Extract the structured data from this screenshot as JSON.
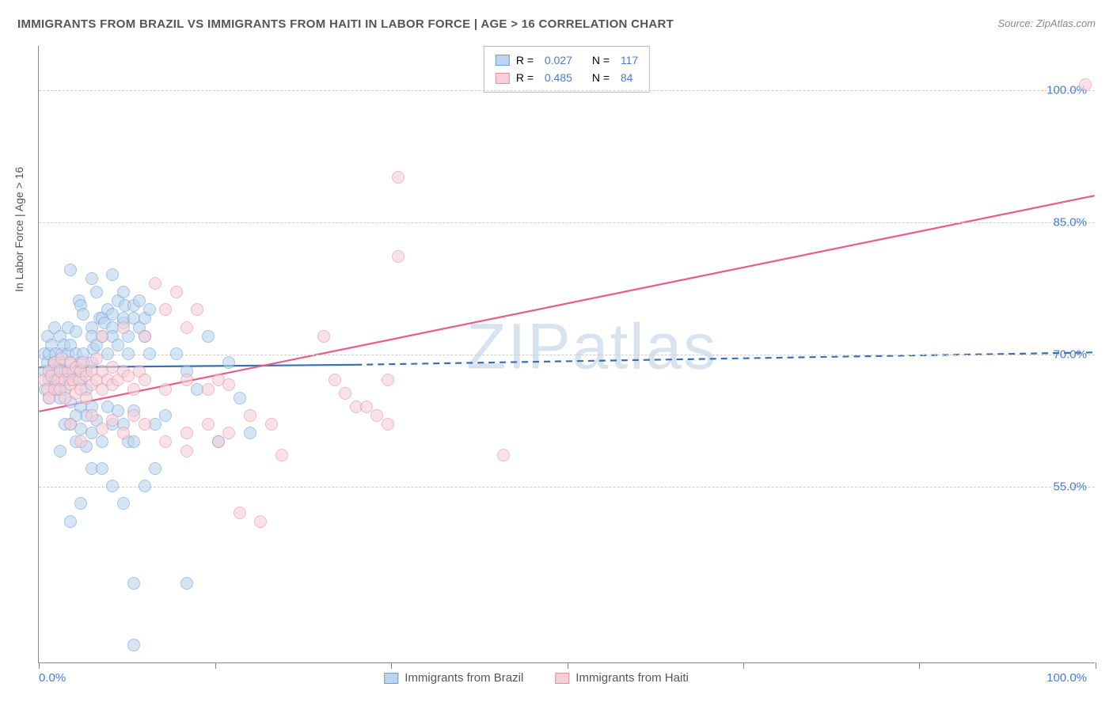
{
  "title": "IMMIGRANTS FROM BRAZIL VS IMMIGRANTS FROM HAITI IN LABOR FORCE | AGE > 16 CORRELATION CHART",
  "source": "Source: ZipAtlas.com",
  "y_axis_label": "In Labor Force | Age > 16",
  "watermark_1": "ZIP",
  "watermark_2": "atlas",
  "chart": {
    "type": "scatter",
    "xlim": [
      0,
      100
    ],
    "ylim": [
      35,
      105
    ],
    "x_min_label": "0.0%",
    "x_max_label": "100.0%",
    "x_tick_positions": [
      0,
      16.67,
      33.33,
      50,
      66.67,
      83.33,
      100
    ],
    "y_gridlines": [
      55,
      70,
      85,
      100
    ],
    "y_labels": [
      "55.0%",
      "70.0%",
      "85.0%",
      "100.0%"
    ],
    "background_color": "#ffffff",
    "grid_color": "#cccccc",
    "marker_radius": 8,
    "marker_stroke_width": 1.5,
    "series": [
      {
        "name": "Immigrants from Brazil",
        "fill": "#bcd4ee",
        "stroke": "#6a9fd4",
        "fill_opacity": 0.6,
        "R_label": "R =",
        "R": "0.027",
        "N_label": "N =",
        "N": "117",
        "regression": {
          "x1": 0,
          "y1": 68.5,
          "x2": 30,
          "y2": 68.8,
          "dash_from_x": 30,
          "x3": 100,
          "y3": 70.2,
          "color": "#3a6fb0",
          "width": 2.2
        },
        "points": [
          [
            0.5,
            68
          ],
          [
            0.5,
            70
          ],
          [
            0.6,
            66
          ],
          [
            0.8,
            69
          ],
          [
            0.8,
            72
          ],
          [
            1,
            67
          ],
          [
            1,
            65
          ],
          [
            1,
            70
          ],
          [
            1.2,
            68
          ],
          [
            1.2,
            71
          ],
          [
            1.4,
            69
          ],
          [
            1.5,
            67
          ],
          [
            1.5,
            73
          ],
          [
            1.6,
            70
          ],
          [
            1.8,
            66
          ],
          [
            1.8,
            68
          ],
          [
            2,
            72
          ],
          [
            2,
            69
          ],
          [
            2,
            65
          ],
          [
            2.2,
            70
          ],
          [
            2.2,
            67
          ],
          [
            2.4,
            71
          ],
          [
            2.5,
            68
          ],
          [
            2.5,
            66
          ],
          [
            2.8,
            70
          ],
          [
            2.8,
            73
          ],
          [
            3,
            69
          ],
          [
            3,
            67
          ],
          [
            3,
            71
          ],
          [
            3.2,
            68
          ],
          [
            3.5,
            70
          ],
          [
            3.5,
            72.5
          ],
          [
            3.8,
            76
          ],
          [
            4,
            75.5
          ],
          [
            4,
            67
          ],
          [
            4,
            69
          ],
          [
            4.2,
            70
          ],
          [
            4.2,
            74.5
          ],
          [
            4.5,
            68
          ],
          [
            4.5,
            66
          ],
          [
            5,
            73
          ],
          [
            5,
            72
          ],
          [
            5,
            69
          ],
          [
            5.2,
            70.5
          ],
          [
            5.5,
            77
          ],
          [
            5.5,
            71
          ],
          [
            5.8,
            74
          ],
          [
            6,
            72
          ],
          [
            6,
            74
          ],
          [
            6.2,
            73.5
          ],
          [
            6.5,
            75
          ],
          [
            6.5,
            70
          ],
          [
            7,
            73
          ],
          [
            7,
            74.5
          ],
          [
            7,
            72
          ],
          [
            7.5,
            71
          ],
          [
            7.5,
            76
          ],
          [
            8,
            73.5
          ],
          [
            8,
            74
          ],
          [
            8.2,
            75.5
          ],
          [
            8.5,
            72
          ],
          [
            8.5,
            70
          ],
          [
            9,
            74
          ],
          [
            9,
            75.5
          ],
          [
            9.5,
            73
          ],
          [
            9.5,
            76
          ],
          [
            10,
            74
          ],
          [
            10,
            72
          ],
          [
            10.5,
            75
          ],
          [
            10.5,
            70
          ],
          [
            3,
            62
          ],
          [
            3.5,
            60
          ],
          [
            4,
            64
          ],
          [
            4.5,
            63
          ],
          [
            5,
            61
          ],
          [
            5.5,
            62.5
          ],
          [
            6,
            60
          ],
          [
            6.5,
            64
          ],
          [
            7,
            62
          ],
          [
            7.5,
            63.5
          ],
          [
            2,
            59
          ],
          [
            2.5,
            62
          ],
          [
            3,
            64.5
          ],
          [
            3.5,
            63
          ],
          [
            4,
            61.5
          ],
          [
            4.5,
            59.5
          ],
          [
            5,
            64
          ],
          [
            8,
            62
          ],
          [
            8.5,
            60
          ],
          [
            9,
            63.5
          ],
          [
            4,
            53
          ],
          [
            5,
            57
          ],
          [
            6,
            57
          ],
          [
            7,
            55
          ],
          [
            8,
            53
          ],
          [
            9,
            60
          ],
          [
            10,
            55
          ],
          [
            11,
            57
          ],
          [
            3,
            51
          ],
          [
            11,
            62
          ],
          [
            12,
            63
          ],
          [
            13,
            70
          ],
          [
            14,
            68
          ],
          [
            15,
            66
          ],
          [
            16,
            72
          ],
          [
            17,
            60
          ],
          [
            18,
            69
          ],
          [
            19,
            65
          ],
          [
            20,
            61
          ],
          [
            9,
            44
          ],
          [
            14,
            44
          ],
          [
            9,
            37
          ],
          [
            3,
            79.5
          ],
          [
            5,
            78.5
          ],
          [
            7,
            79
          ],
          [
            8,
            77
          ]
        ]
      },
      {
        "name": "Immigrants from Haiti",
        "fill": "#f6d0d8",
        "stroke": "#e08fa4",
        "fill_opacity": 0.6,
        "R_label": "R =",
        "R": "0.485",
        "N_label": "N =",
        "N": "84",
        "regression": {
          "x1": 0,
          "y1": 63.5,
          "x2": 100,
          "y2": 88,
          "color": "#e85d88",
          "width": 2.2
        },
        "points": [
          [
            0.5,
            67
          ],
          [
            0.8,
            66
          ],
          [
            1,
            68
          ],
          [
            1,
            65
          ],
          [
            1.2,
            67.5
          ],
          [
            1.5,
            66
          ],
          [
            1.5,
            69
          ],
          [
            1.8,
            67
          ],
          [
            2,
            68
          ],
          [
            2,
            66
          ],
          [
            2.2,
            69.5
          ],
          [
            2.5,
            67
          ],
          [
            2.5,
            65
          ],
          [
            2.8,
            68
          ],
          [
            3,
            66.5
          ],
          [
            3,
            69
          ],
          [
            3.2,
            67
          ],
          [
            3.5,
            68.5
          ],
          [
            3.5,
            65.5
          ],
          [
            3.8,
            67
          ],
          [
            4,
            68
          ],
          [
            4,
            66
          ],
          [
            4.2,
            69
          ],
          [
            4.5,
            67.5
          ],
          [
            4.5,
            65
          ],
          [
            5,
            68
          ],
          [
            5,
            66.5
          ],
          [
            5.5,
            67
          ],
          [
            5.5,
            69.5
          ],
          [
            6,
            68
          ],
          [
            6,
            66
          ],
          [
            6.5,
            67
          ],
          [
            7,
            68.5
          ],
          [
            7,
            66.5
          ],
          [
            7.5,
            67
          ],
          [
            8,
            68
          ],
          [
            8.5,
            67.5
          ],
          [
            9,
            66
          ],
          [
            9.5,
            68
          ],
          [
            10,
            67
          ],
          [
            12,
            66
          ],
          [
            14,
            67
          ],
          [
            15,
            75
          ],
          [
            16,
            66
          ],
          [
            17,
            67
          ],
          [
            18,
            66.5
          ],
          [
            3,
            62
          ],
          [
            4,
            60
          ],
          [
            5,
            63
          ],
          [
            6,
            61.5
          ],
          [
            7,
            62.5
          ],
          [
            8,
            61
          ],
          [
            9,
            63
          ],
          [
            10,
            62
          ],
          [
            12,
            60
          ],
          [
            14,
            61
          ],
          [
            16,
            62
          ],
          [
            18,
            61
          ],
          [
            20,
            63
          ],
          [
            22,
            62
          ],
          [
            6,
            72
          ],
          [
            8,
            73
          ],
          [
            10,
            72
          ],
          [
            12,
            75
          ],
          [
            14,
            73
          ],
          [
            11,
            78
          ],
          [
            13,
            77
          ],
          [
            27,
            72
          ],
          [
            28,
            67
          ],
          [
            29,
            65.5
          ],
          [
            30,
            64
          ],
          [
            31,
            64
          ],
          [
            32,
            63
          ],
          [
            33,
            62
          ],
          [
            34,
            81
          ],
          [
            34,
            90
          ],
          [
            33,
            67
          ],
          [
            19,
            52
          ],
          [
            21,
            51
          ],
          [
            23,
            58.5
          ],
          [
            14,
            59
          ],
          [
            17,
            60
          ],
          [
            44,
            58.5
          ],
          [
            99,
            100.5
          ]
        ]
      }
    ]
  },
  "bottom_legend": [
    {
      "label": "Immigrants from Brazil",
      "fill": "#bcd4ee",
      "stroke": "#6a9fd4"
    },
    {
      "label": "Immigrants from Haiti",
      "fill": "#f6d0d8",
      "stroke": "#e08fa4"
    }
  ]
}
